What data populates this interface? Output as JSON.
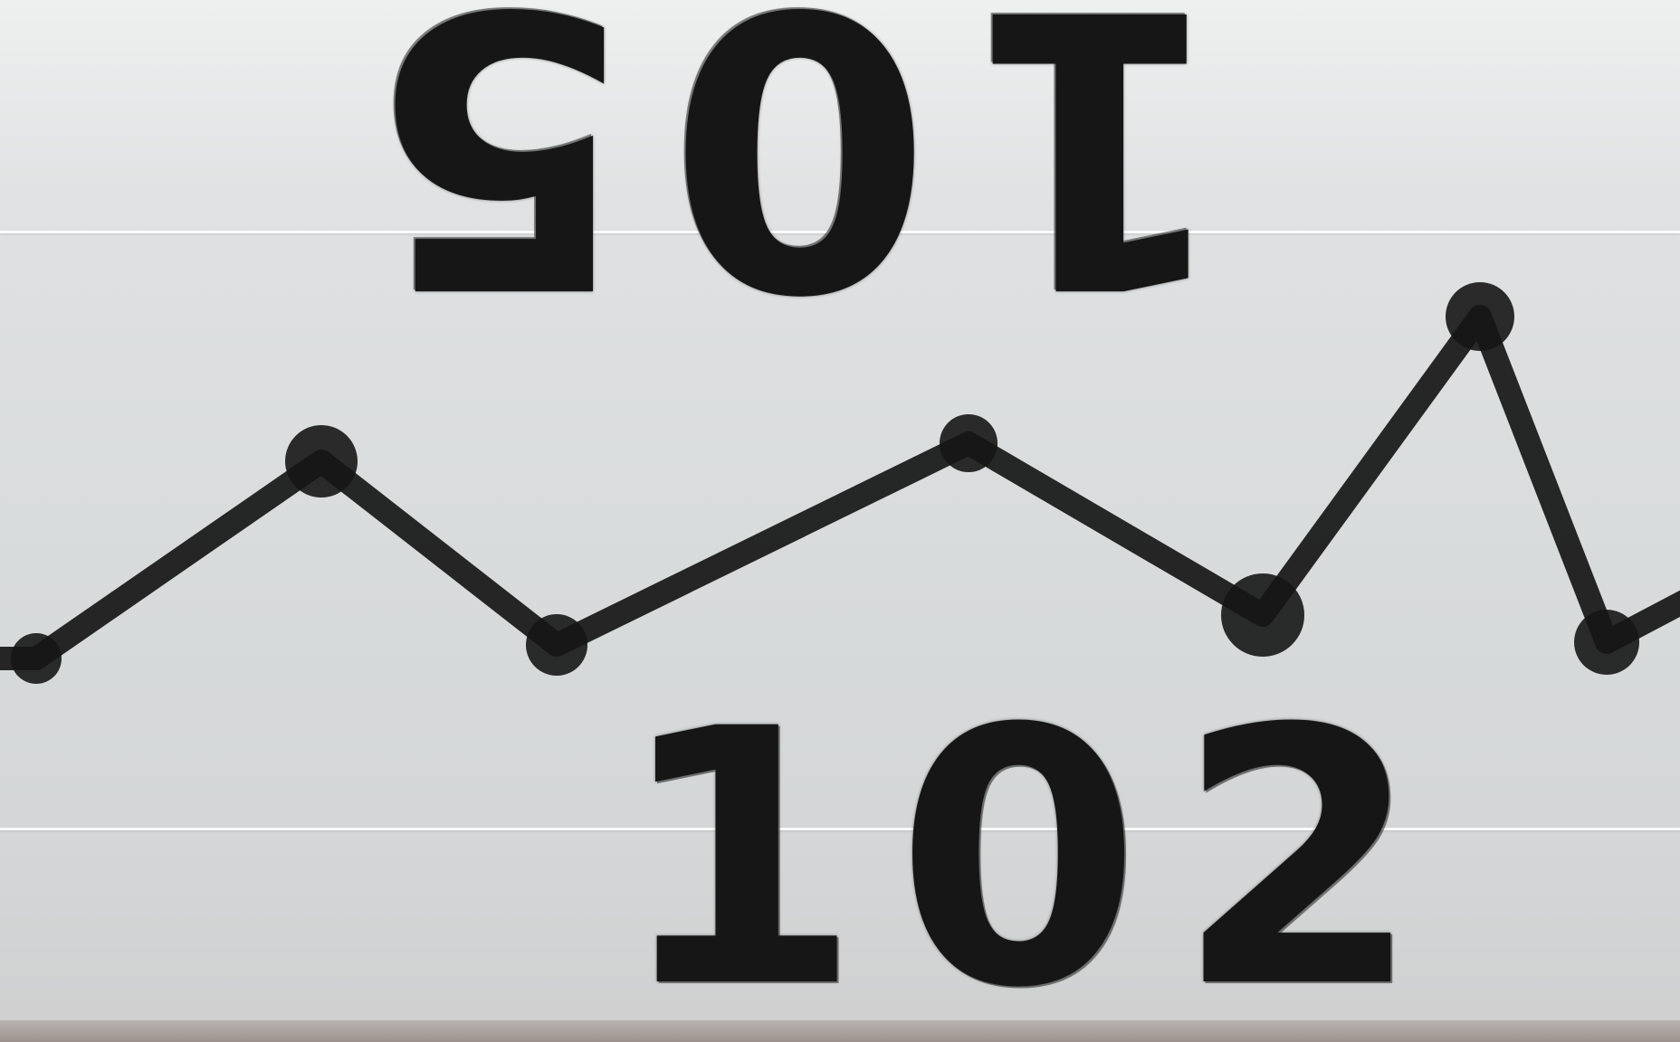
{
  "labels": {
    "top_number": "105",
    "bottom_number": "102"
  },
  "drawing": {
    "ink_color": "#161616",
    "board_color": "#d9dbdc",
    "marker_count": 8
  }
}
